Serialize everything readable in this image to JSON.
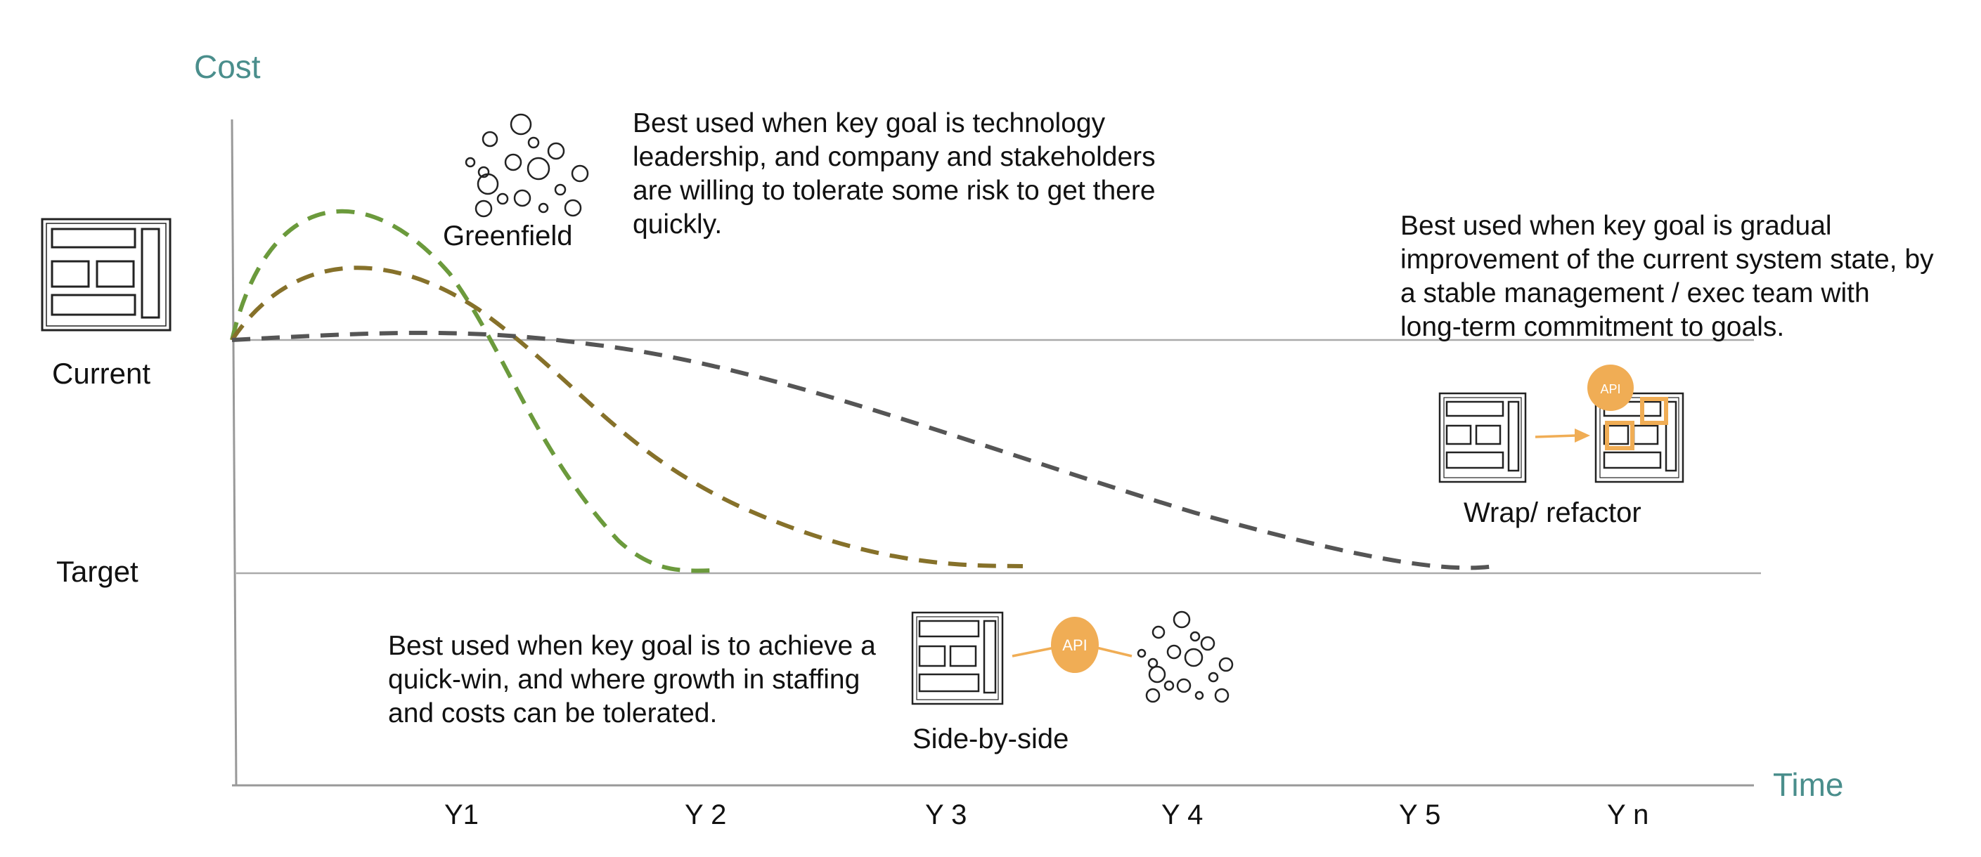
{
  "axes": {
    "y_label": "Cost",
    "x_label": "Time",
    "ticks": [
      "Y1",
      "Y 2",
      "Y 3",
      "Y 4",
      "Y 5",
      "Y n"
    ],
    "levels": {
      "current": "Current",
      "target": "Target"
    }
  },
  "approaches": {
    "greenfield": {
      "label": "Greenfield",
      "description": [
        "Best used when key goal is technology",
        "leadership, and company and stakeholders",
        "are willing to tolerate some risk to get there",
        "quickly."
      ]
    },
    "wrap_refactor": {
      "label": "Wrap/ refactor",
      "description": [
        "Best used when key goal is gradual",
        "improvement of the current system state, by",
        "a stable management / exec team with",
        "long-term commitment to goals."
      ],
      "badge": "API"
    },
    "side_by_side": {
      "label": "Side-by-side",
      "description": [
        "Best used when key goal is to achieve a",
        "quick-win, and where growth in staffing",
        "and costs can be tolerated."
      ],
      "badge": "API"
    }
  },
  "colors": {
    "axis_label": "#4a8e8c",
    "greenfield_curve": "#6b9a3c",
    "side_by_side_curve": "#86712a",
    "wrap_refactor_curve": "#555555",
    "api_orange": "#f0ad55",
    "guide_line": "#aaaaaa"
  }
}
